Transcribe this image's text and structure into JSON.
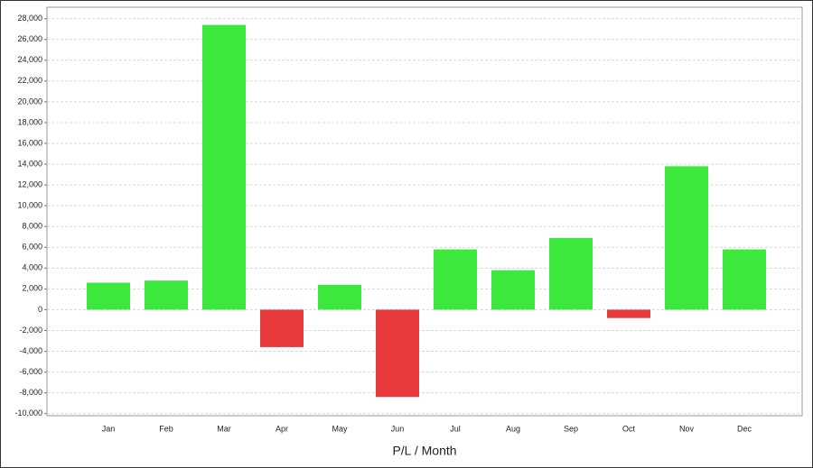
{
  "chart_data": {
    "type": "bar",
    "x_label": "P/L / Month",
    "categories": [
      "Jan",
      "Feb",
      "Mar",
      "Apr",
      "May",
      "Jun",
      "Jul",
      "Aug",
      "Sep",
      "Oct",
      "Nov",
      "Dec"
    ],
    "values": [
      2600,
      2800,
      27400,
      -3600,
      2400,
      -8400,
      5800,
      3800,
      6900,
      -800,
      13800,
      5800
    ],
    "colors": {
      "positive": "#3de83d",
      "negative": "#e8393d"
    },
    "ylim": [
      -10200,
      29100
    ],
    "yticks": [
      {
        "value": -10000,
        "label": "-10,000"
      },
      {
        "value": -8000,
        "label": "-8,000"
      },
      {
        "value": -6000,
        "label": "-6,000"
      },
      {
        "value": -4000,
        "label": "-4,000"
      },
      {
        "value": -2000,
        "label": "-2,000"
      },
      0,
      {
        "value": 2000,
        "label": "2,000"
      },
      {
        "value": 4000,
        "label": "4,000"
      },
      {
        "value": 6000,
        "label": "6,000"
      },
      {
        "value": 8000,
        "label": "8,000"
      },
      {
        "value": 10000,
        "label": "10,000"
      },
      {
        "value": 12000,
        "label": "12,000"
      },
      {
        "value": 14000,
        "label": "14,000"
      },
      {
        "value": 16000,
        "label": "16,000"
      },
      {
        "value": 18000,
        "label": "18,000"
      },
      {
        "value": 20000,
        "label": "20,000"
      },
      {
        "value": 22000,
        "label": "22,000"
      },
      {
        "value": 24000,
        "label": "24,000"
      },
      {
        "value": 26000,
        "label": "26,000"
      },
      {
        "value": 28000,
        "label": "28,000"
      }
    ],
    "grid": true
  }
}
